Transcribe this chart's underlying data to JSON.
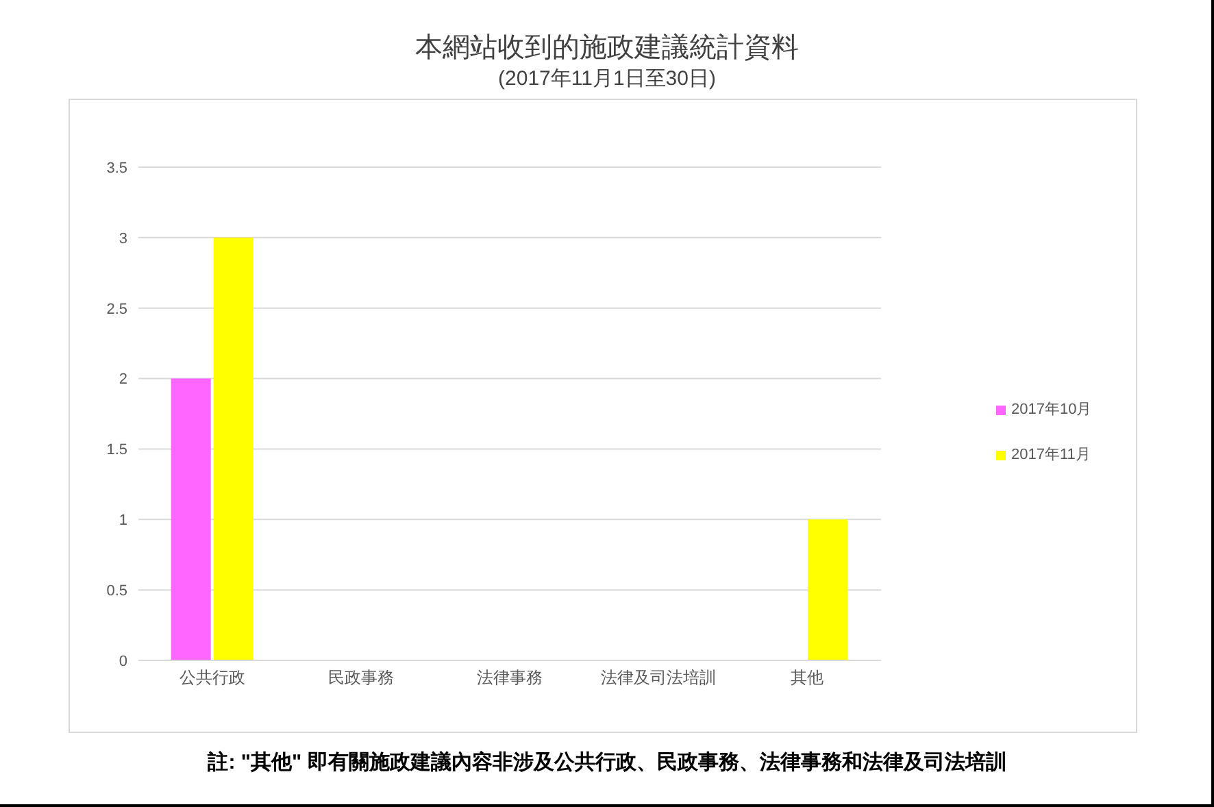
{
  "chart_data": {
    "type": "bar",
    "title": "本網站收到的施政建議統計資料",
    "subtitle": "(2017年11月1日至30日)",
    "categories": [
      "公共行政",
      "民政事務",
      "法律事務",
      "法律及司法培訓",
      "其他"
    ],
    "series": [
      {
        "name": "2017年10月",
        "color": "#ff66ff",
        "values": [
          2,
          0,
          0,
          0,
          0
        ]
      },
      {
        "name": "2017年11月",
        "color": "#ffff00",
        "values": [
          3,
          0,
          0,
          0,
          1
        ]
      }
    ],
    "ylim": [
      0,
      3.5
    ],
    "yticks": [
      0,
      0.5,
      1,
      1.5,
      2,
      2.5,
      3,
      3.5
    ],
    "grid": "y",
    "legend": "right",
    "annotations": [
      "註: \"其他\" 即有關施政建議內容非涉及公共行政、民政事務、法律事務和法律及司法培訓"
    ]
  }
}
